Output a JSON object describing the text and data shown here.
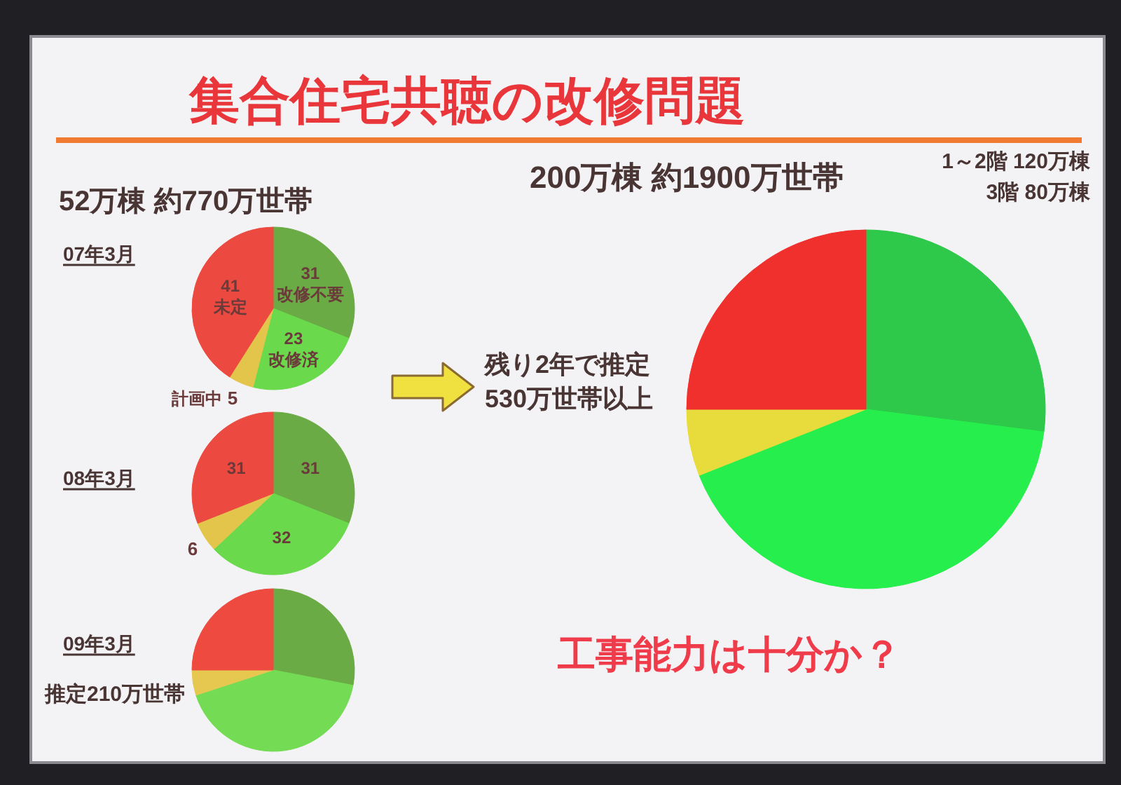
{
  "chart_data": [
    {
      "type": "other",
      "title": "集合住宅共聴の改修問題",
      "annotations": [
        "工事能力は十分か？"
      ]
    },
    {
      "type": "pie",
      "title": "52万棟 約770万世帯",
      "subtitle": "07年3月",
      "categories": [
        "改修不要",
        "改修済",
        "計画中",
        "未定"
      ],
      "values": [
        31,
        23,
        5,
        41
      ],
      "colors": [
        "#6bab45",
        "#6ad94c",
        "#e3c54c",
        "#ec4a40"
      ],
      "data_labels": true
    },
    {
      "type": "pie",
      "title": "08年3月",
      "categories": [
        null,
        null,
        null,
        null
      ],
      "values": [
        31,
        32,
        6,
        31
      ],
      "colors": [
        "#6bab45",
        "#6ad94c",
        "#e3c54c",
        "#ec4a40"
      ],
      "data_labels": true
    },
    {
      "type": "pie",
      "title": "09年3月",
      "categories": [
        null,
        null,
        null,
        null
      ],
      "values": [
        28,
        42,
        5,
        25
      ],
      "colors": [
        "#6bab45",
        "#74dc54",
        "#e6c850",
        "#ee4a40"
      ],
      "annotations": [
        "推定210万世帯"
      ]
    },
    {
      "type": "pie",
      "title": "200万棟 約1900万世帯",
      "categories": [
        null,
        null,
        null,
        null
      ],
      "values": [
        27,
        42,
        6,
        25
      ],
      "colors": [
        "#2ec84a",
        "#26ee4c",
        "#e8dc3c",
        "#f0302c"
      ],
      "annotations": [
        "1～2階 120万棟",
        "3階 80万棟",
        "残り2年で推定530万世帯以上"
      ]
    }
  ]
}
